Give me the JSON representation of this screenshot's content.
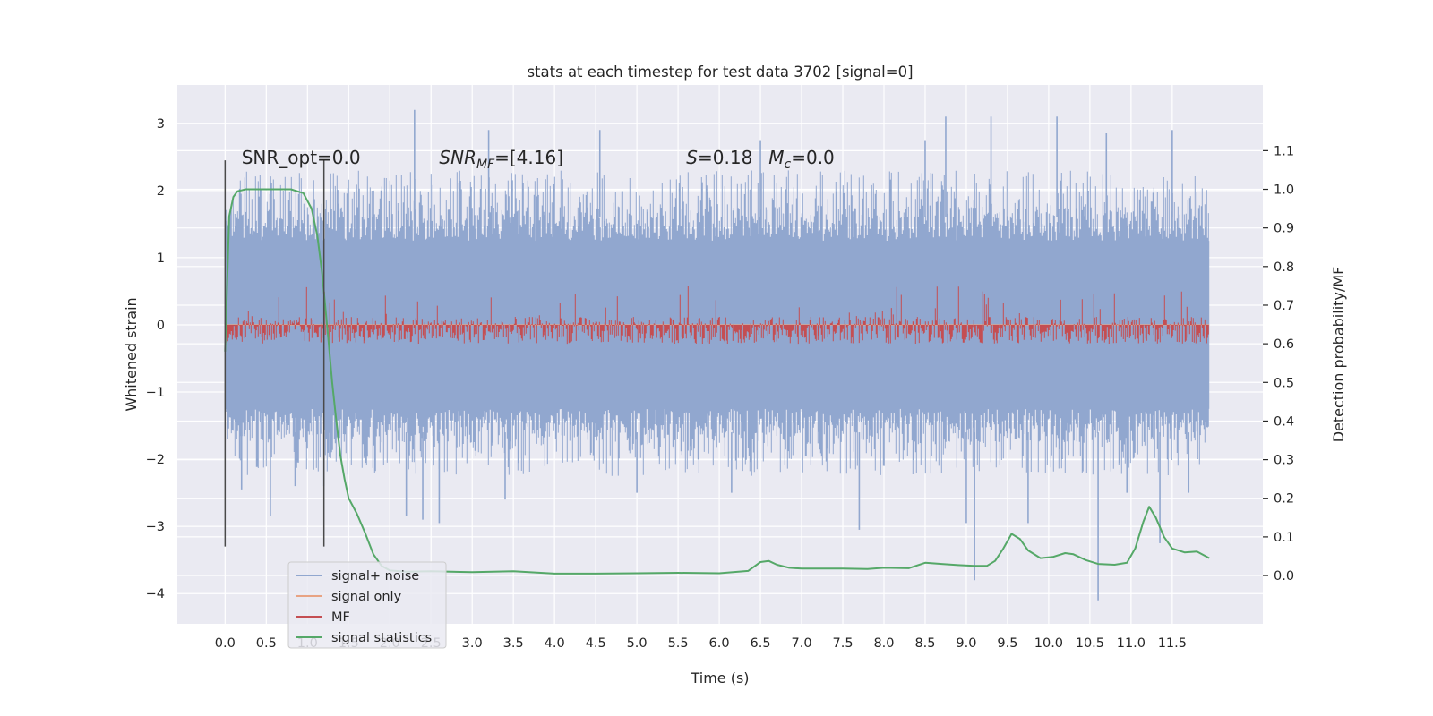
{
  "chart_data": {
    "type": "line",
    "title": "stats at each timestep for test data 3702 [signal=0]",
    "xlabel": "Time (s)",
    "ylabel": "Whitened strain",
    "y2label": "Detection probability/MF",
    "xlim": [
      -0.58,
      12.6
    ],
    "ylim": [
      -4.45,
      3.57
    ],
    "y2lim": [
      -0.125,
      1.27
    ],
    "x_ticks": [
      0.0,
      0.5,
      1.0,
      1.5,
      2.0,
      2.5,
      3.0,
      3.5,
      4.0,
      4.5,
      5.0,
      5.5,
      6.0,
      6.5,
      7.0,
      7.5,
      8.0,
      8.5,
      9.0,
      9.5,
      10.0,
      10.5,
      11.0,
      11.5
    ],
    "x_tick_labels": [
      "0.0",
      "0.5",
      "1.0",
      "1.5",
      "2.0",
      "2.5",
      "3.0",
      "3.5",
      "4.0",
      "4.5",
      "5.0",
      "5.5",
      "6.0",
      "6.5",
      "7.0",
      "7.5",
      "8.0",
      "8.5",
      "9.0",
      "9.5",
      "10.0",
      "10.5",
      "11.0",
      "11.5"
    ],
    "y_ticks": [
      -4,
      -3,
      -2,
      -1,
      0,
      1,
      2,
      3
    ],
    "y_tick_labels": [
      "−4",
      "−3",
      "−2",
      "−1",
      "0",
      "1",
      "2",
      "3"
    ],
    "y2_ticks": [
      0.0,
      0.1,
      0.2,
      0.3,
      0.4,
      0.5,
      0.6,
      0.7,
      0.8,
      0.9,
      1.0,
      1.1
    ],
    "y2_tick_labels": [
      "0.0",
      "0.1",
      "0.2",
      "0.3",
      "0.4",
      "0.5",
      "0.6",
      "0.7",
      "0.8",
      "0.9",
      "1.0",
      "1.1"
    ],
    "grid": true,
    "legend_position": "bottom-left",
    "annotations": {
      "snr_opt": "SNR_opt=0.0",
      "snr_mf_main": "SNR",
      "snr_mf_sub": "MF",
      "snr_mf_value": "=[4.16]",
      "s_symbol": "S",
      "s_value": "=0.18",
      "mc_symbol": "M",
      "mc_sub": "c",
      "mc_value": "=0.0"
    },
    "vlines": {
      "x": [
        0.0,
        1.2
      ],
      "y_range": [
        -3.3,
        2.45
      ]
    },
    "series": [
      {
        "name": "signal+ noise",
        "color": "#91a7cf",
        "axis": "left",
        "kind": "noise-band",
        "x_range": [
          0.0,
          11.95
        ],
        "band": [
          -1.85,
          2.3
        ],
        "spikes": [
          [
            0.2,
            -2.45
          ],
          [
            0.55,
            -2.85
          ],
          [
            0.85,
            -2.4
          ],
          [
            1.2,
            -2.4
          ],
          [
            2.2,
            -2.85
          ],
          [
            2.3,
            3.2
          ],
          [
            2.4,
            -2.9
          ],
          [
            2.6,
            -2.95
          ],
          [
            3.2,
            2.9
          ],
          [
            3.4,
            -2.6
          ],
          [
            4.55,
            2.9
          ],
          [
            5.0,
            -2.5
          ],
          [
            6.15,
            -2.5
          ],
          [
            6.5,
            2.75
          ],
          [
            7.7,
            -3.05
          ],
          [
            8.5,
            2.75
          ],
          [
            8.75,
            3.1
          ],
          [
            9.0,
            -2.95
          ],
          [
            9.1,
            -3.8
          ],
          [
            9.3,
            3.1
          ],
          [
            9.75,
            -2.95
          ],
          [
            10.1,
            3.1
          ],
          [
            10.6,
            -4.1
          ],
          [
            10.7,
            2.85
          ],
          [
            10.95,
            -2.5
          ],
          [
            11.35,
            -3.25
          ],
          [
            11.5,
            2.9
          ],
          [
            11.7,
            -2.5
          ]
        ]
      },
      {
        "name": "signal only",
        "color": "#e8a383",
        "axis": "left",
        "kind": "line",
        "x": [
          0.0,
          11.95
        ],
        "y": [
          0.0,
          0.0
        ]
      },
      {
        "name": "MF",
        "color": "#c44e52",
        "axis": "right",
        "kind": "noise-band",
        "x_range": [
          0.0,
          11.95
        ],
        "band": [
          0.6,
          0.67
        ],
        "peak": 0.75
      },
      {
        "name": "signal statistics",
        "color": "#55a868",
        "axis": "right",
        "kind": "line",
        "x": [
          0.0,
          0.05,
          0.1,
          0.15,
          0.25,
          0.4,
          0.6,
          0.8,
          0.95,
          1.05,
          1.12,
          1.18,
          1.25,
          1.3,
          1.35,
          1.4,
          1.45,
          1.5,
          1.6,
          1.7,
          1.8,
          1.9,
          2.0,
          2.2,
          2.5,
          3.0,
          3.5,
          4.0,
          4.5,
          5.0,
          5.5,
          6.0,
          6.35,
          6.5,
          6.6,
          6.7,
          6.85,
          7.0,
          7.5,
          7.8,
          8.0,
          8.3,
          8.5,
          8.7,
          8.9,
          9.1,
          9.25,
          9.35,
          9.45,
          9.55,
          9.65,
          9.75,
          9.9,
          10.05,
          10.2,
          10.3,
          10.45,
          10.6,
          10.8,
          10.95,
          11.05,
          11.15,
          11.22,
          11.3,
          11.4,
          11.5,
          11.65,
          11.8,
          11.95
        ],
        "y": [
          0.58,
          0.93,
          0.98,
          0.995,
          1.0,
          1.0,
          1.0,
          1.0,
          0.99,
          0.95,
          0.88,
          0.78,
          0.62,
          0.5,
          0.4,
          0.31,
          0.25,
          0.2,
          0.16,
          0.11,
          0.055,
          0.025,
          0.013,
          0.01,
          0.011,
          0.009,
          0.011,
          0.005,
          0.005,
          0.006,
          0.007,
          0.006,
          0.012,
          0.035,
          0.038,
          0.028,
          0.02,
          0.018,
          0.018,
          0.017,
          0.02,
          0.019,
          0.033,
          0.03,
          0.027,
          0.025,
          0.025,
          0.038,
          0.07,
          0.108,
          0.095,
          0.065,
          0.045,
          0.048,
          0.058,
          0.055,
          0.04,
          0.03,
          0.028,
          0.033,
          0.07,
          0.14,
          0.178,
          0.15,
          0.1,
          0.07,
          0.06,
          0.062,
          0.045
        ]
      }
    ]
  }
}
